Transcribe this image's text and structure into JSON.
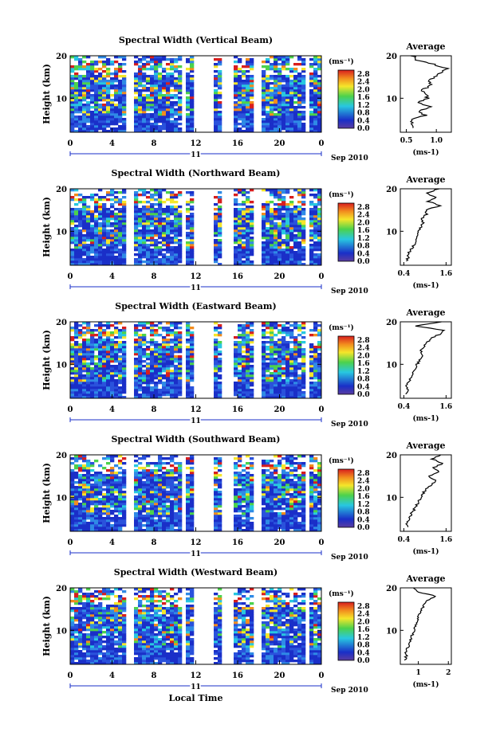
{
  "figure": {
    "time_axis_label": "Local Time",
    "date_label": "Sep 2010",
    "day_label": "11",
    "height_label": "Height (km)",
    "avg_title": "Average",
    "unit_label": "(ms⁻¹)",
    "colorbar_ticks": [
      "2.8",
      "2.4",
      "2.0",
      "1.6",
      "1.2",
      "0.8",
      "0.4",
      "0.0"
    ],
    "colors": {
      "low": "#1a2fc8",
      "mid": "#28c8e0",
      "green": "#4cd24c",
      "yellow": "#f5e62a",
      "orange": "#f28c1e",
      "red": "#d81e1e"
    }
  },
  "chart_data": [
    {
      "type": "heatmap",
      "title": "Spectral Width (Vertical Beam)",
      "xlabel": "",
      "ylabel": "Height (km)",
      "x_ticks": [
        "0",
        "4",
        "8",
        "12",
        "16",
        "20",
        "0"
      ],
      "y_ticks": [
        "20",
        "10"
      ],
      "xlim": [
        0,
        24
      ],
      "ylim": [
        2,
        20
      ],
      "colorbar": {
        "unit": "ms-1",
        "range": [
          0.0,
          3.0
        ],
        "ticks": [
          2.8,
          2.4,
          2.0,
          1.6,
          1.2,
          0.8,
          0.4,
          0.0
        ]
      },
      "gaps_local_time": [
        [
          5.5,
          6.2
        ],
        [
          10.5,
          11.0
        ],
        [
          12.0,
          13.8
        ],
        [
          14.6,
          15.8
        ],
        [
          17.6,
          18.2
        ],
        [
          22.3,
          22.8
        ]
      ],
      "profile": {
        "title": "Average",
        "xlabel": "(ms-1)",
        "x_ticks": [
          "0.5",
          "1.0"
        ],
        "xlim": [
          0.4,
          1.25
        ],
        "y_ticks": [
          "20",
          "10"
        ],
        "ylim": [
          2,
          20
        ],
        "height_km": [
          3,
          4,
          5,
          6,
          7,
          8,
          9,
          10,
          11,
          12,
          13,
          14,
          15,
          16,
          17,
          18,
          19,
          20
        ],
        "width": [
          0.6,
          0.62,
          0.58,
          0.82,
          0.7,
          0.88,
          0.72,
          0.85,
          0.8,
          0.78,
          0.92,
          0.88,
          0.95,
          1.05,
          1.18,
          0.95,
          0.68,
          0.6
        ]
      }
    },
    {
      "type": "heatmap",
      "title": "Spectral Width (Northward Beam)",
      "xlabel": "",
      "ylabel": "Height (km)",
      "x_ticks": [
        "0",
        "4",
        "8",
        "12",
        "16",
        "20",
        "0"
      ],
      "y_ticks": [
        "20",
        "10"
      ],
      "xlim": [
        0,
        24
      ],
      "ylim": [
        2,
        20
      ],
      "colorbar": {
        "unit": "ms-1",
        "range": [
          0.0,
          3.0
        ],
        "ticks": [
          2.8,
          2.4,
          2.0,
          1.6,
          1.2,
          0.8,
          0.4,
          0.0
        ]
      },
      "gaps_local_time": [
        [
          5.5,
          6.2
        ],
        [
          10.5,
          11.0
        ],
        [
          12.0,
          13.8
        ],
        [
          14.6,
          15.8
        ],
        [
          17.6,
          18.2
        ],
        [
          22.3,
          22.8
        ]
      ],
      "profile": {
        "title": "Average",
        "xlabel": "(ms-1)",
        "x_ticks": [
          "0.4",
          "1.6"
        ],
        "xlim": [
          0.3,
          1.75
        ],
        "y_ticks": [
          "20",
          "10"
        ],
        "ylim": [
          2,
          20
        ],
        "height_km": [
          3,
          4,
          5,
          6,
          7,
          8,
          9,
          10,
          11,
          12,
          13,
          14,
          15,
          16,
          17,
          18,
          19,
          20
        ],
        "width": [
          0.5,
          0.52,
          0.55,
          0.62,
          0.7,
          0.75,
          0.8,
          0.82,
          0.9,
          0.95,
          0.92,
          1.05,
          1.0,
          1.45,
          1.1,
          1.3,
          1.05,
          1.4
        ]
      }
    },
    {
      "type": "heatmap",
      "title": "Spectral Width (Eastward Beam)",
      "xlabel": "",
      "ylabel": "Height (km)",
      "x_ticks": [
        "0",
        "4",
        "8",
        "12",
        "16",
        "20",
        "0"
      ],
      "y_ticks": [
        "20",
        "10"
      ],
      "xlim": [
        0,
        24
      ],
      "ylim": [
        2,
        20
      ],
      "colorbar": {
        "unit": "ms-1",
        "range": [
          0.0,
          3.0
        ],
        "ticks": [
          2.8,
          2.4,
          2.0,
          1.6,
          1.2,
          0.8,
          0.4,
          0.0
        ]
      },
      "gaps_local_time": [
        [
          5.5,
          6.2
        ],
        [
          10.5,
          11.0
        ],
        [
          12.0,
          13.8
        ],
        [
          14.6,
          15.8
        ],
        [
          17.6,
          18.2
        ],
        [
          22.3,
          22.8
        ]
      ],
      "profile": {
        "title": "Average",
        "xlabel": "(ms-1)",
        "x_ticks": [
          "0.4",
          "1.6"
        ],
        "xlim": [
          0.3,
          1.75
        ],
        "y_ticks": [
          "20",
          "10"
        ],
        "ylim": [
          2,
          20
        ],
        "height_km": [
          3,
          4,
          5,
          6,
          7,
          8,
          9,
          10,
          11,
          12,
          13,
          14,
          15,
          16,
          17,
          18,
          19,
          20
        ],
        "width": [
          0.45,
          0.5,
          0.48,
          0.55,
          0.6,
          0.68,
          0.72,
          0.78,
          0.85,
          0.9,
          0.88,
          0.95,
          1.05,
          1.15,
          1.4,
          1.55,
          0.7,
          1.45
        ]
      }
    },
    {
      "type": "heatmap",
      "title": "Spectral Width (Southward Beam)",
      "xlabel": "",
      "ylabel": "Height (km)",
      "x_ticks": [
        "0",
        "4",
        "8",
        "12",
        "16",
        "20",
        "0"
      ],
      "y_ticks": [
        "20",
        "10"
      ],
      "xlim": [
        0,
        24
      ],
      "ylim": [
        2,
        20
      ],
      "colorbar": {
        "unit": "ms-1",
        "range": [
          0.0,
          3.0
        ],
        "ticks": [
          2.8,
          2.4,
          2.0,
          1.6,
          1.2,
          0.8,
          0.4,
          0.0
        ]
      },
      "gaps_local_time": [
        [
          5.5,
          6.2
        ],
        [
          10.5,
          11.0
        ],
        [
          12.0,
          13.8
        ],
        [
          14.6,
          15.8
        ],
        [
          17.6,
          18.2
        ],
        [
          22.3,
          22.8
        ]
      ],
      "profile": {
        "title": "Average",
        "xlabel": "(ms-1)",
        "x_ticks": [
          "0.4",
          "1.6"
        ],
        "xlim": [
          0.3,
          1.75
        ],
        "y_ticks": [
          "20",
          "10"
        ],
        "ylim": [
          2,
          20
        ],
        "height_km": [
          3,
          4,
          5,
          6,
          7,
          8,
          9,
          10,
          11,
          12,
          13,
          14,
          15,
          16,
          17,
          18,
          19,
          20
        ],
        "width": [
          0.5,
          0.48,
          0.55,
          0.6,
          0.68,
          0.75,
          0.82,
          0.88,
          0.95,
          1.05,
          1.2,
          1.3,
          1.1,
          1.4,
          1.25,
          1.5,
          1.2,
          1.45
        ]
      }
    },
    {
      "type": "heatmap",
      "title": "Spectral Width (Westward Beam)",
      "xlabel": "Local Time",
      "ylabel": "Height (km)",
      "x_ticks": [
        "0",
        "4",
        "8",
        "12",
        "16",
        "20",
        "0"
      ],
      "y_ticks": [
        "20",
        "10"
      ],
      "xlim": [
        0,
        24
      ],
      "ylim": [
        2,
        20
      ],
      "colorbar": {
        "unit": "ms-1",
        "range": [
          0.0,
          3.0
        ],
        "ticks": [
          2.8,
          2.4,
          2.0,
          1.6,
          1.2,
          0.8,
          0.4,
          0.0
        ]
      },
      "gaps_local_time": [
        [
          5.5,
          6.2
        ],
        [
          10.5,
          11.0
        ],
        [
          12.0,
          13.8
        ],
        [
          14.6,
          15.8
        ],
        [
          17.6,
          18.2
        ],
        [
          22.3,
          22.8
        ]
      ],
      "profile": {
        "title": "Average",
        "xlabel": "(ms-1)",
        "x_ticks": [
          "1",
          "2"
        ],
        "xlim": [
          0.4,
          2.1
        ],
        "y_ticks": [
          "20",
          "10"
        ],
        "ylim": [
          2,
          20
        ],
        "height_km": [
          3,
          4,
          5,
          6,
          7,
          8,
          9,
          10,
          11,
          12,
          13,
          14,
          15,
          16,
          17,
          18,
          19,
          20
        ],
        "width": [
          0.55,
          0.6,
          0.58,
          0.65,
          0.7,
          0.75,
          0.8,
          0.85,
          0.9,
          0.95,
          1.0,
          1.05,
          1.1,
          1.2,
          1.3,
          1.6,
          1.0,
          0.8
        ]
      }
    }
  ]
}
